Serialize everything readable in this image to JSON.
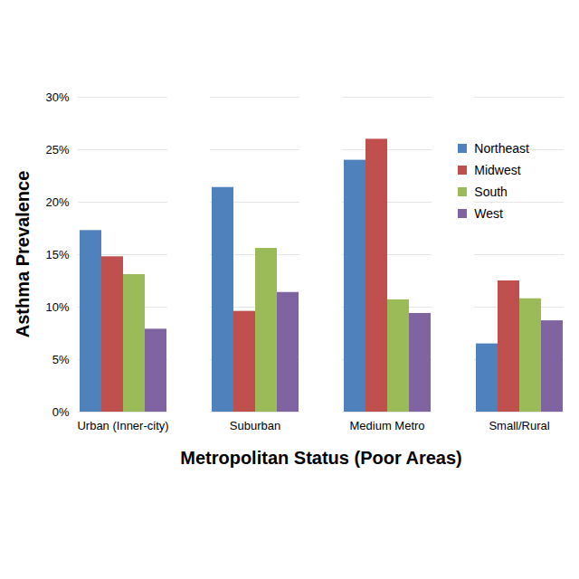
{
  "chart_data": {
    "type": "bar",
    "x_label": "Metropolitan Status (Poor Areas)",
    "y_label": "Asthma Prevalence",
    "categories": [
      "Urban (Inner-city)",
      "Suburban",
      "Medium Metro",
      "Small/Rural"
    ],
    "series": [
      {
        "name": "Northeast",
        "color": "#4f81bd",
        "values": [
          17.3,
          21.4,
          24.0,
          6.5
        ]
      },
      {
        "name": "Midwest",
        "color": "#c0504d",
        "values": [
          14.8,
          9.6,
          26.0,
          12.5
        ]
      },
      {
        "name": "South",
        "color": "#9bbb59",
        "values": [
          13.1,
          15.6,
          10.7,
          10.8
        ]
      },
      {
        "name": "West",
        "color": "#8064a2",
        "values": [
          7.9,
          11.4,
          9.4,
          8.7
        ]
      }
    ],
    "ylim": [
      0,
      30
    ],
    "yticks": [
      {
        "value": 0,
        "label": "0%"
      },
      {
        "value": 5,
        "label": "5%"
      },
      {
        "value": 10,
        "label": "10%"
      },
      {
        "value": 15,
        "label": "15%"
      },
      {
        "value": 20,
        "label": "20%"
      },
      {
        "value": 25,
        "label": "25%"
      },
      {
        "value": 30,
        "label": "30%"
      }
    ],
    "grid": true,
    "legend": "top-right"
  }
}
